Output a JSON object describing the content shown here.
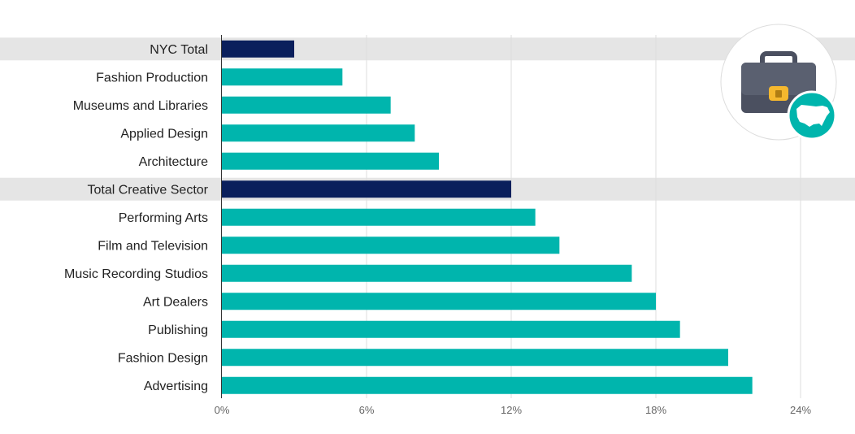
{
  "chart_data": {
    "type": "bar",
    "orientation": "horizontal",
    "categories": [
      "NYC Total",
      "Fashion Production",
      "Museums and Libraries",
      "Applied Design",
      "Architecture",
      "Total Creative Sector",
      "Performing Arts",
      "Film and Television",
      "Music Recording Studios",
      "Art Dealers",
      "Publishing",
      "Fashion Design",
      "Advertising"
    ],
    "values": [
      3,
      5,
      7,
      8,
      9,
      12,
      13,
      14,
      17,
      18,
      19,
      21,
      22
    ],
    "highlighted": [
      "NYC Total",
      "Total Creative Sector"
    ],
    "xlim": [
      0,
      24
    ],
    "xticks": [
      "0%",
      "6%",
      "12%",
      "18%",
      "24%"
    ],
    "grid": true,
    "colors": {
      "bar": "#00b5ad",
      "highlight_bar": "#0a1f5c",
      "highlight_band": "#e5e5e5",
      "grid": "#dddddd",
      "axis": "#333333"
    }
  },
  "icon": {
    "name": "briefcase-usa-icon",
    "colors": {
      "body": "#5a6070",
      "clasp": "#f5b82e",
      "badge": "#00b5ad"
    }
  }
}
